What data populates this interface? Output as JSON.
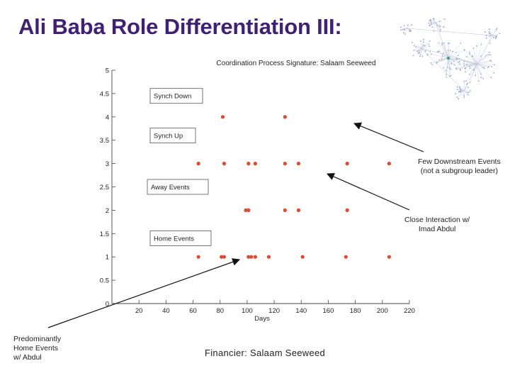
{
  "slide": {
    "title": "Ali Baba Role Differentiation III:",
    "caption": "Financier: Salaam Seeweed"
  },
  "annotations": {
    "few_downstream": [
      "Few Downstream Events",
      "(not a subgroup leader)"
    ],
    "close_interaction": [
      "Close Interaction w/",
      "Imad Abdul"
    ],
    "predominantly_home": [
      "Predominantly",
      "Home Events",
      "w/ Abdul"
    ]
  },
  "colors": {
    "title": "#3f1f7a",
    "points": "#e8452c",
    "network_nodes": "#9aa6c8"
  },
  "chart_data": {
    "type": "scatter",
    "title": "Coordination Process Signature: Salaam Seeweed",
    "xlabel": "Days",
    "ylabel": "",
    "xlim": [
      0,
      220
    ],
    "ylim": [
      0,
      5
    ],
    "xticks": [
      20,
      40,
      60,
      80,
      100,
      120,
      140,
      160,
      180,
      200,
      220
    ],
    "yticks": [
      0,
      0.5,
      1,
      1.5,
      2,
      2.5,
      3,
      3.5,
      4,
      4.5,
      5
    ],
    "grid": false,
    "category_labels": [
      {
        "text": "Synch Down",
        "y": 4.45
      },
      {
        "text": "Synch Up",
        "y": 3.6
      },
      {
        "text": "Away Events",
        "y": 2.5
      },
      {
        "text": "Home Events",
        "y": 1.4
      }
    ],
    "points": [
      {
        "x": 82,
        "y": 4
      },
      {
        "x": 128,
        "y": 4
      },
      {
        "x": 64,
        "y": 3
      },
      {
        "x": 83,
        "y": 3
      },
      {
        "x": 101,
        "y": 3
      },
      {
        "x": 106,
        "y": 3
      },
      {
        "x": 128,
        "y": 3
      },
      {
        "x": 138,
        "y": 3
      },
      {
        "x": 174,
        "y": 3
      },
      {
        "x": 205,
        "y": 3
      },
      {
        "x": 99,
        "y": 2
      },
      {
        "x": 101,
        "y": 2
      },
      {
        "x": 128,
        "y": 2
      },
      {
        "x": 138,
        "y": 2
      },
      {
        "x": 174,
        "y": 2
      },
      {
        "x": 64,
        "y": 1
      },
      {
        "x": 81,
        "y": 1
      },
      {
        "x": 83,
        "y": 1
      },
      {
        "x": 101,
        "y": 1
      },
      {
        "x": 103,
        "y": 1
      },
      {
        "x": 106,
        "y": 1
      },
      {
        "x": 116,
        "y": 1
      },
      {
        "x": 141,
        "y": 1
      },
      {
        "x": 173,
        "y": 1
      },
      {
        "x": 205,
        "y": 1
      }
    ]
  }
}
